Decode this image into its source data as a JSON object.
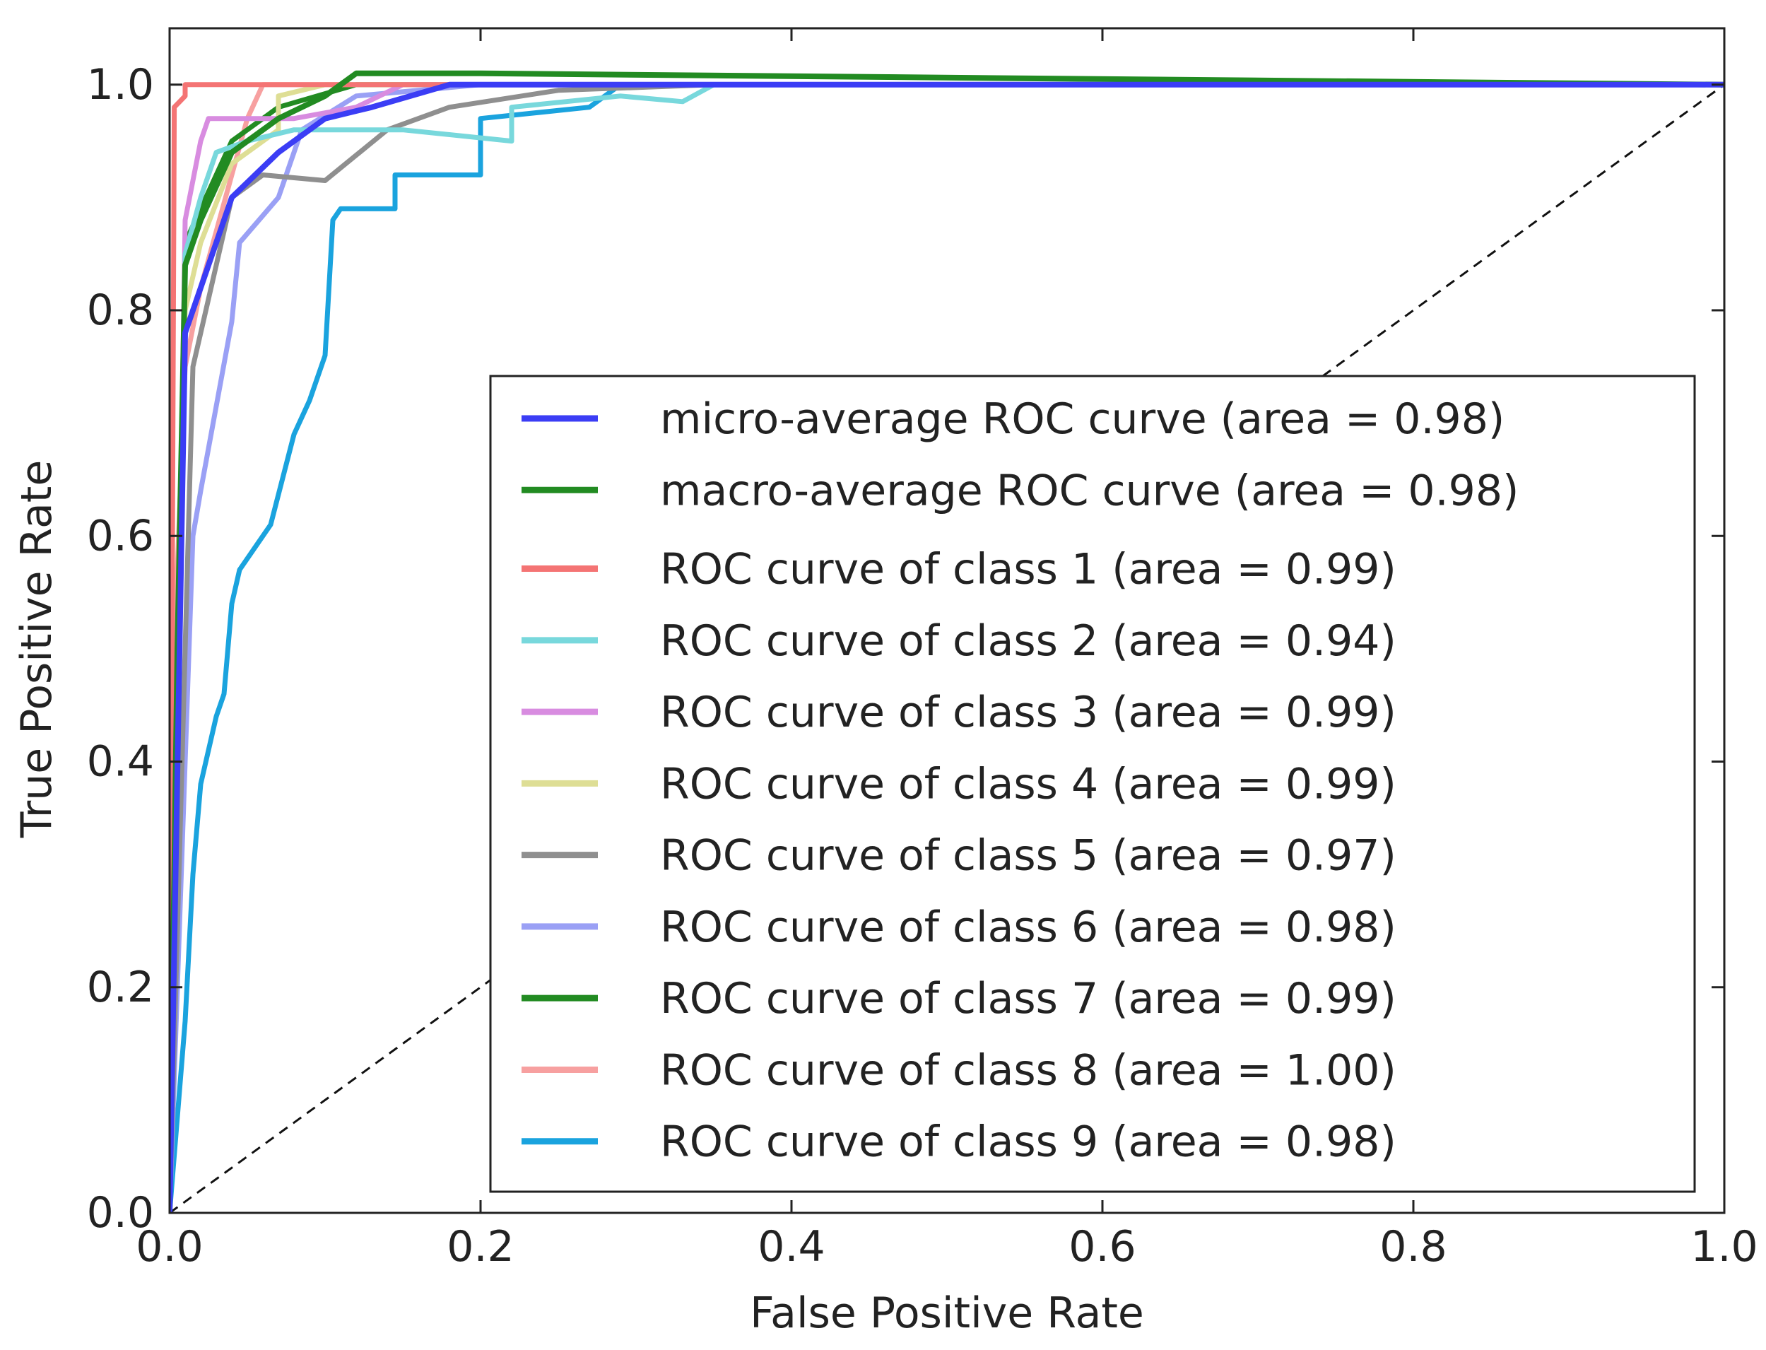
{
  "chart_data": {
    "type": "line",
    "title": "",
    "xlabel": "False Positive Rate",
    "ylabel": "True Positive Rate",
    "xlim": [
      0.0,
      1.0
    ],
    "ylim": [
      0.0,
      1.05
    ],
    "xticks": [
      "0.0",
      "0.2",
      "0.4",
      "0.6",
      "0.8",
      "1.0"
    ],
    "yticks": [
      "0.0",
      "0.2",
      "0.4",
      "0.6",
      "0.8",
      "1.0"
    ],
    "grid": false,
    "legend_position": "lower-right",
    "reference_line": {
      "style": "dashed",
      "color": "#111111",
      "x": [
        0.0,
        1.0
      ],
      "y": [
        0.0,
        1.0
      ]
    },
    "series": [
      {
        "name": "micro-average ROC curve (area = 0.98)",
        "color": "#3b3df5",
        "width": 8,
        "x": [
          0.0,
          0.01,
          0.04,
          0.07,
          0.1,
          0.13,
          0.18,
          0.25,
          0.4,
          1.0
        ],
        "y": [
          0.0,
          0.78,
          0.9,
          0.94,
          0.97,
          0.98,
          1.0,
          1.0,
          1.0,
          1.0
        ]
      },
      {
        "name": "macro-average ROC curve (area = 0.98)",
        "color": "#228b22",
        "width": 8,
        "x": [
          0.0,
          0.005,
          0.01,
          0.02,
          0.04,
          0.07,
          0.1,
          0.12,
          0.2,
          1.0
        ],
        "y": [
          0.0,
          0.5,
          0.84,
          0.88,
          0.94,
          0.97,
          0.99,
          1.01,
          1.01,
          1.0
        ]
      },
      {
        "name": "ROC curve of class 1 (area = 0.99)",
        "color": "#f47474",
        "width": 7,
        "x": [
          0.0,
          0.003,
          0.01,
          0.01,
          0.05,
          1.0
        ],
        "y": [
          0.0,
          0.98,
          0.99,
          1.0,
          1.0,
          1.0
        ]
      },
      {
        "name": "ROC curve of class 2 (area = 0.94)",
        "color": "#78d8dc",
        "width": 7,
        "x": [
          0.0,
          0.01,
          0.02,
          0.03,
          0.05,
          0.08,
          0.1,
          0.15,
          0.22,
          0.22,
          0.29,
          0.33,
          0.35,
          1.0
        ],
        "y": [
          0.0,
          0.85,
          0.9,
          0.94,
          0.95,
          0.96,
          0.96,
          0.96,
          0.95,
          0.98,
          0.99,
          0.985,
          1.0,
          1.0
        ]
      },
      {
        "name": "ROC curve of class 3 (area = 0.99)",
        "color": "#d88ce0",
        "width": 7,
        "x": [
          0.0,
          0.01,
          0.02,
          0.025,
          0.05,
          0.08,
          0.12,
          0.15,
          1.0
        ],
        "y": [
          0.0,
          0.88,
          0.95,
          0.97,
          0.97,
          0.97,
          0.98,
          1.0,
          1.0
        ]
      },
      {
        "name": "ROC curve of class 4 (area = 0.99)",
        "color": "#dede95",
        "width": 7,
        "x": [
          0.0,
          0.01,
          0.02,
          0.04,
          0.07,
          0.07,
          0.1,
          1.0
        ],
        "y": [
          0.0,
          0.8,
          0.86,
          0.93,
          0.96,
          0.99,
          1.0,
          1.0
        ]
      },
      {
        "name": "ROC curve of class 5 (area = 0.97)",
        "color": "#8f8f8f",
        "width": 7,
        "x": [
          0.0,
          0.015,
          0.04,
          0.06,
          0.1,
          0.14,
          0.18,
          0.25,
          0.35,
          1.0
        ],
        "y": [
          0.0,
          0.75,
          0.9,
          0.92,
          0.915,
          0.96,
          0.98,
          0.995,
          1.0,
          1.0
        ]
      },
      {
        "name": "ROC curve of class 6 (area = 0.98)",
        "color": "#9aa0f5",
        "width": 7,
        "x": [
          0.0,
          0.015,
          0.02,
          0.04,
          0.045,
          0.07,
          0.085,
          0.12,
          0.2,
          1.0
        ],
        "y": [
          0.0,
          0.6,
          0.64,
          0.79,
          0.86,
          0.9,
          0.96,
          0.99,
          1.0,
          1.0
        ]
      },
      {
        "name": "ROC curve of class 7 (area = 0.99)",
        "color": "#228b22",
        "width": 7,
        "x": [
          0.0,
          0.01,
          0.04,
          0.07,
          0.12,
          0.2,
          1.0
        ],
        "y": [
          0.0,
          0.86,
          0.95,
          0.98,
          1.0,
          1.0,
          1.0
        ]
      },
      {
        "name": "ROC curve of class 8 (area = 1.00)",
        "color": "#f7a0a0",
        "width": 7,
        "x": [
          0.0,
          0.003,
          0.01,
          0.02,
          0.04,
          0.05,
          0.06,
          1.0
        ],
        "y": [
          0.0,
          0.5,
          0.75,
          0.82,
          0.92,
          0.97,
          1.0,
          1.0
        ]
      },
      {
        "name": "ROC curve of class 9 (area = 0.98)",
        "color": "#1aa3de",
        "width": 7,
        "x": [
          0.0,
          0.01,
          0.015,
          0.02,
          0.03,
          0.035,
          0.04,
          0.045,
          0.065,
          0.08,
          0.09,
          0.1,
          0.105,
          0.11,
          0.145,
          0.145,
          0.2,
          0.2,
          0.27,
          0.27,
          0.29,
          0.35,
          1.0
        ],
        "y": [
          0.0,
          0.17,
          0.3,
          0.38,
          0.44,
          0.46,
          0.54,
          0.57,
          0.61,
          0.69,
          0.72,
          0.76,
          0.88,
          0.89,
          0.89,
          0.92,
          0.92,
          0.97,
          0.98,
          0.98,
          1.0,
          1.0,
          1.0
        ]
      }
    ]
  }
}
